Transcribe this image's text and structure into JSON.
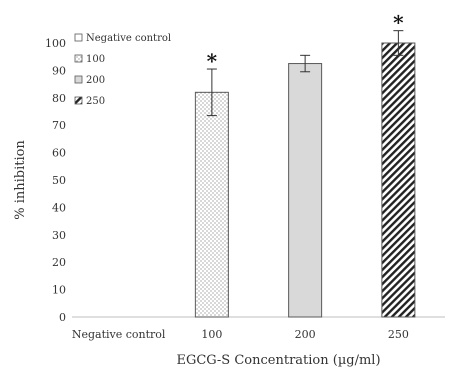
{
  "chart_data": {
    "type": "bar",
    "categories": [
      "Negative control",
      "100",
      "200",
      "250"
    ],
    "values": [
      0,
      82,
      92.5,
      100
    ],
    "errors": [
      0,
      8.5,
      3,
      4.5
    ],
    "significance": [
      "",
      "*",
      "",
      "*"
    ],
    "xlabel": "EGCG-S Concentration (µg/ml)",
    "ylabel": "% inhibition",
    "ylim": [
      0,
      100
    ],
    "yticks": [
      0,
      10,
      20,
      30,
      40,
      50,
      60,
      70,
      80,
      90,
      100
    ],
    "legend": {
      "position": "top-left",
      "entries": [
        "Negative control",
        "100",
        "200",
        "250"
      ]
    },
    "fills": [
      "none",
      "dotted",
      "#d9d9d9",
      "diagonal-hatch"
    ],
    "colors": {
      "bar_border": "#595959",
      "axis": "#bfbfbf",
      "text": "#333333"
    }
  }
}
